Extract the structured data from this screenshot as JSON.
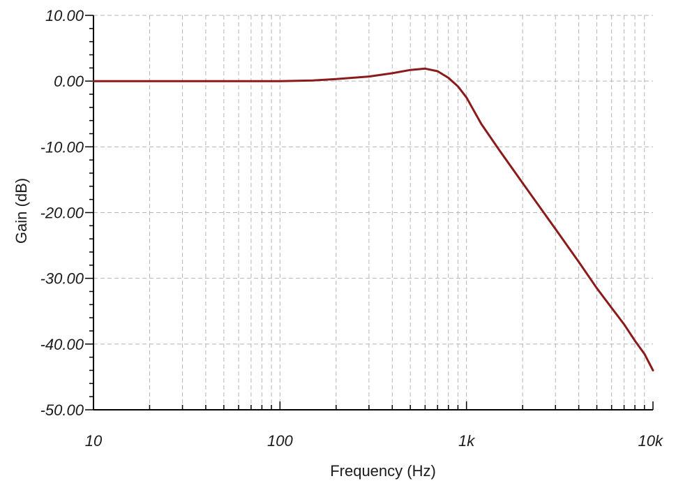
{
  "chart_data": {
    "type": "line",
    "xlabel": "Frequency (Hz)",
    "ylabel": "Gain (dB)",
    "x_scale": "log",
    "xlim": [
      10,
      10000
    ],
    "ylim": [
      -50,
      10
    ],
    "x_ticks": [
      {
        "value": 10,
        "label": "10"
      },
      {
        "value": 100,
        "label": "100"
      },
      {
        "value": 1000,
        "label": "1k"
      },
      {
        "value": 10000,
        "label": "10k"
      }
    ],
    "y_ticks": [
      {
        "value": 10,
        "label": "10.00"
      },
      {
        "value": 0,
        "label": "0.00"
      },
      {
        "value": -10,
        "label": "-10.00"
      },
      {
        "value": -20,
        "label": "-20.00"
      },
      {
        "value": -30,
        "label": "-30.00"
      },
      {
        "value": -40,
        "label": "-40.00"
      },
      {
        "value": -50,
        "label": "-50.00"
      }
    ],
    "grid": true,
    "series": [
      {
        "color": "#8b1a1a",
        "x": [
          10,
          50,
          100,
          150,
          200,
          300,
          400,
          500,
          600,
          700,
          800,
          900,
          1000,
          1200,
          1500,
          2000,
          3000,
          4000,
          5000,
          6000,
          7000,
          8000,
          9000,
          10000
        ],
        "y": [
          0.0,
          0.0,
          0.0,
          0.1,
          0.3,
          0.7,
          1.2,
          1.7,
          1.9,
          1.5,
          0.5,
          -0.8,
          -2.5,
          -6.5,
          -10.5,
          -15.5,
          -22.5,
          -27.5,
          -31.5,
          -34.5,
          -37.0,
          -39.5,
          -41.5,
          -44.0
        ]
      }
    ]
  }
}
